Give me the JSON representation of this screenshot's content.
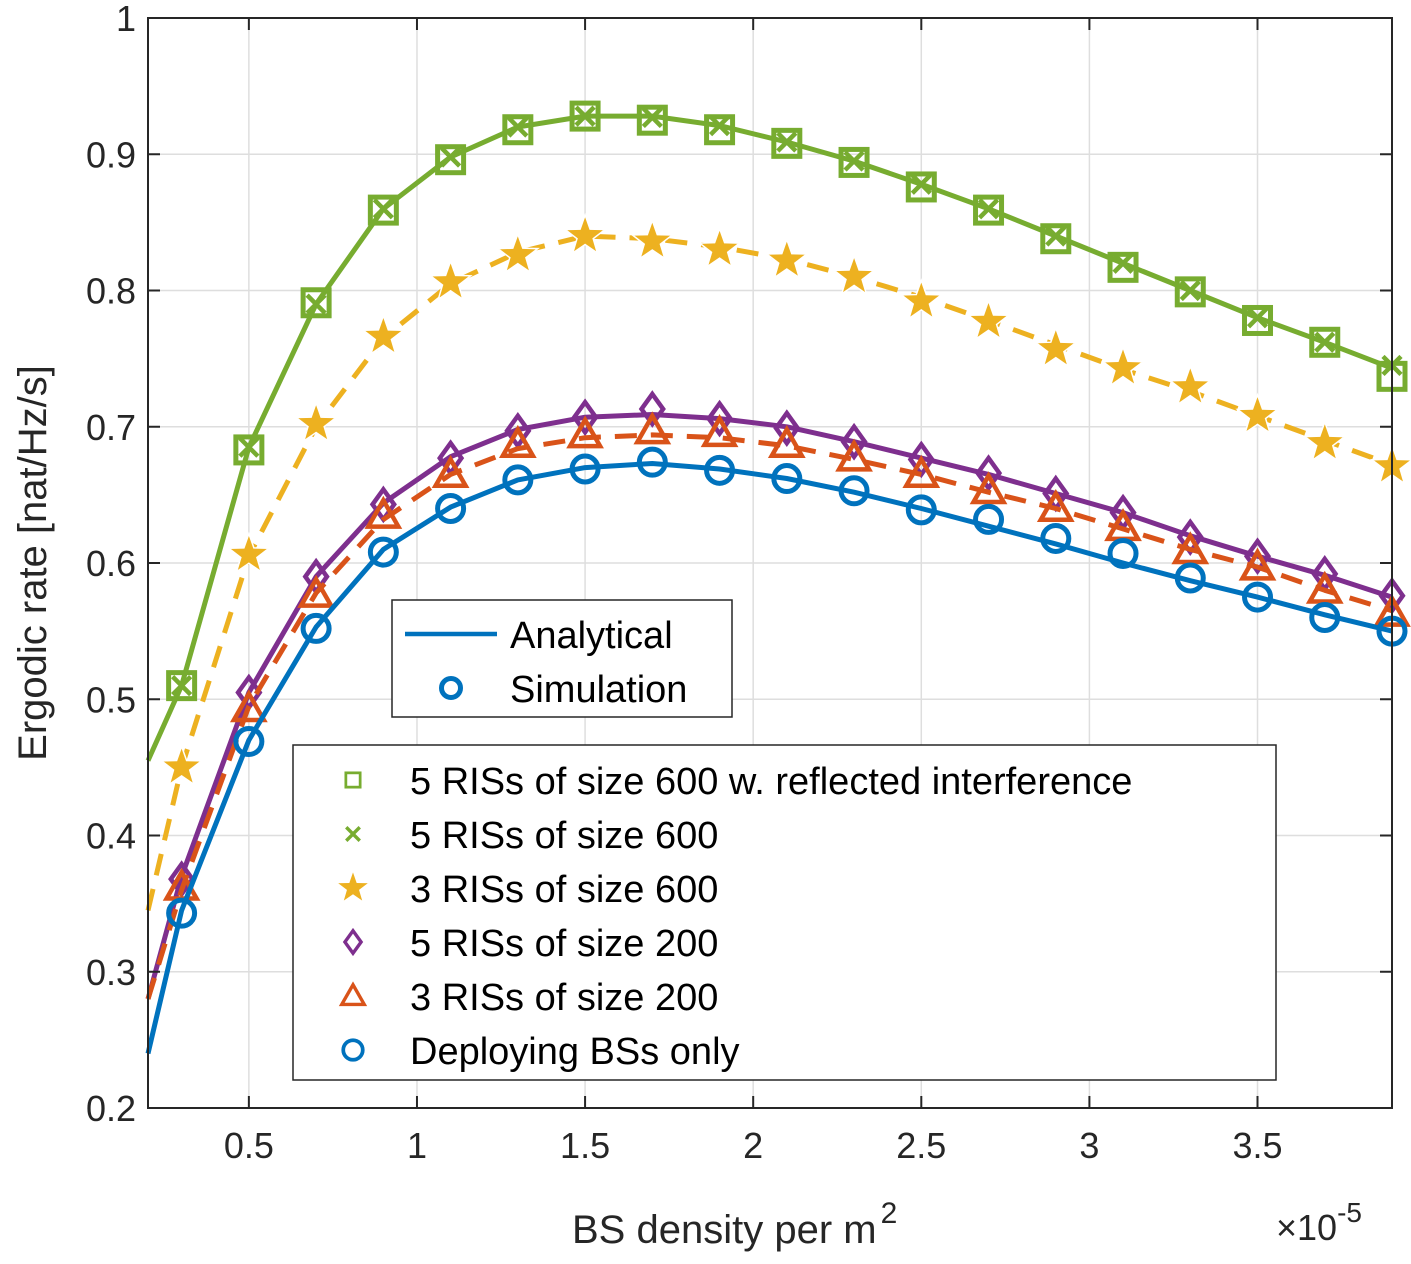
{
  "chart_data": {
    "type": "line",
    "xlabel": "BS density per m",
    "xlabel_sup": "2",
    "ylabel": "Ergodic rate [nat/Hz/s]",
    "x_exponent_prefix": "×10",
    "x_exponent_power": "-5",
    "xlim": [
      0.2,
      3.9
    ],
    "ylim": [
      0.2,
      1.0
    ],
    "xticks": [
      0.5,
      1,
      1.5,
      2,
      2.5,
      3,
      3.5
    ],
    "xtick_labels": [
      "0.5",
      "1",
      "1.5",
      "2",
      "2.5",
      "3",
      "3.5"
    ],
    "yticks": [
      0.2,
      0.3,
      0.4,
      0.5,
      0.6,
      0.7,
      0.8,
      0.9,
      1.0
    ],
    "ytick_labels": [
      "0.2",
      "0.3",
      "0.4",
      "0.5",
      "0.6",
      "0.7",
      "0.8",
      "0.9",
      "1"
    ],
    "grid": true,
    "line_x": [
      0.2,
      0.3,
      0.5,
      0.7,
      0.9,
      1.1,
      1.3,
      1.5,
      1.7,
      1.9,
      2.1,
      2.3,
      2.5,
      2.7,
      2.9,
      3.1,
      3.3,
      3.5,
      3.7,
      3.9
    ],
    "marker_x": [
      0.3,
      0.5,
      0.7,
      0.9,
      1.1,
      1.3,
      1.5,
      1.7,
      1.9,
      2.1,
      2.3,
      2.5,
      2.7,
      2.9,
      3.1,
      3.3,
      3.5,
      3.7,
      3.9
    ],
    "series": [
      {
        "name": "5 RISs of size 600 w. reflected interference",
        "color": "#77AC30",
        "line": "solid",
        "marker": "square",
        "line_values": [
          0.455,
          0.51,
          0.685,
          0.79,
          0.86,
          0.898,
          0.92,
          0.928,
          0.928,
          0.921,
          0.909,
          0.895,
          0.878,
          0.86,
          0.84,
          0.82,
          0.8,
          0.78,
          0.762,
          0.743
        ],
        "sim_values": [
          0.51,
          0.683,
          0.791,
          0.859,
          0.896,
          0.918,
          0.928,
          0.925,
          0.918,
          0.908,
          0.894,
          0.876,
          0.859,
          0.838,
          0.817,
          0.799,
          0.778,
          0.762,
          0.737
        ]
      },
      {
        "name": "5 RISs of size 600",
        "color": "#77AC30",
        "line": "none",
        "marker": "x",
        "sim_values": [
          0.51,
          0.685,
          0.79,
          0.86,
          0.898,
          0.92,
          0.928,
          0.927,
          0.921,
          0.909,
          0.895,
          0.878,
          0.86,
          0.84,
          0.82,
          0.8,
          0.78,
          0.762,
          0.745
        ]
      },
      {
        "name": "3 RISs of size 600",
        "color": "#EDB120",
        "line": "dashed",
        "marker": "star",
        "line_values": [
          0.345,
          0.45,
          0.605,
          0.7,
          0.765,
          0.805,
          0.828,
          0.84,
          0.838,
          0.832,
          0.823,
          0.81,
          0.795,
          0.778,
          0.76,
          0.742,
          0.726,
          0.708,
          0.69,
          0.672
        ],
        "sim_values": [
          0.45,
          0.606,
          0.702,
          0.766,
          0.806,
          0.826,
          0.84,
          0.836,
          0.83,
          0.822,
          0.81,
          0.792,
          0.777,
          0.757,
          0.743,
          0.729,
          0.708,
          0.688,
          0.671
        ]
      },
      {
        "name": "5 RISs of size 200",
        "color": "#7E2F8E",
        "line": "solid",
        "marker": "diamond",
        "line_values": [
          0.28,
          0.37,
          0.505,
          0.59,
          0.644,
          0.678,
          0.698,
          0.707,
          0.709,
          0.706,
          0.7,
          0.689,
          0.677,
          0.665,
          0.651,
          0.637,
          0.62,
          0.605,
          0.591,
          0.575
        ],
        "sim_values": [
          0.368,
          0.505,
          0.59,
          0.643,
          0.677,
          0.697,
          0.707,
          0.713,
          0.706,
          0.699,
          0.689,
          0.676,
          0.666,
          0.651,
          0.637,
          0.619,
          0.605,
          0.592,
          0.576
        ]
      },
      {
        "name": "3 RISs of size 200",
        "color": "#D95319",
        "line": "dashed",
        "marker": "triangle",
        "line_values": [
          0.28,
          0.36,
          0.495,
          0.578,
          0.632,
          0.665,
          0.684,
          0.692,
          0.694,
          0.692,
          0.686,
          0.676,
          0.665,
          0.652,
          0.64,
          0.625,
          0.61,
          0.597,
          0.58,
          0.565
        ],
        "sim_values": [
          0.362,
          0.493,
          0.577,
          0.635,
          0.665,
          0.687,
          0.694,
          0.697,
          0.695,
          0.687,
          0.677,
          0.665,
          0.653,
          0.64,
          0.626,
          0.609,
          0.597,
          0.58,
          0.563
        ]
      },
      {
        "name": "Deploying BSs only",
        "color": "#0072BD",
        "line": "solid",
        "marker": "circle",
        "line_values": [
          0.24,
          0.345,
          0.47,
          0.553,
          0.61,
          0.641,
          0.661,
          0.67,
          0.673,
          0.669,
          0.662,
          0.652,
          0.64,
          0.627,
          0.614,
          0.6,
          0.587,
          0.575,
          0.562,
          0.55
        ],
        "sim_values": [
          0.343,
          0.469,
          0.552,
          0.608,
          0.64,
          0.661,
          0.669,
          0.674,
          0.668,
          0.662,
          0.653,
          0.639,
          0.632,
          0.618,
          0.607,
          0.589,
          0.575,
          0.56,
          0.55
        ]
      }
    ],
    "legend_style": {
      "title": "",
      "placement": "center-left",
      "entries": [
        "Analytical",
        "Simulation"
      ]
    },
    "legend_series": {
      "placement": "center-left",
      "entries": [
        "5 RISs of size 600 w. reflected interference",
        "5 RISs of size 600",
        "3 RISs of size 600",
        "5 RISs of size 200",
        "3 RISs of size 200",
        "Deploying BSs only"
      ]
    }
  }
}
